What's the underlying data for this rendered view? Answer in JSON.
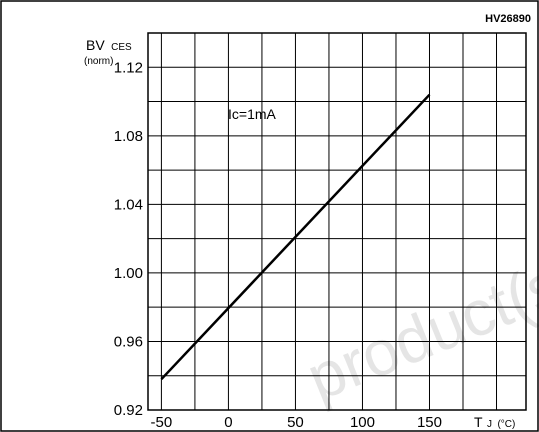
{
  "figure": {
    "code": "HV26890"
  },
  "chart_data": {
    "type": "line",
    "ylabel_main": "BV",
    "ylabel_sub": "CES",
    "ylabel_unit": "(norm)",
    "xlabel_main": "T",
    "xlabel_sub": "J",
    "xlabel_unit": "(°C)",
    "annotation": "Ic=1mA",
    "xlim": [
      -60,
      222
    ],
    "ylim": [
      0.92,
      1.14
    ],
    "x_ticks": [
      -50,
      0,
      50,
      100,
      150
    ],
    "x_tick_labels": [
      "-50",
      "0",
      "50",
      "100",
      "150"
    ],
    "y_ticks": [
      0.92,
      0.96,
      1.0,
      1.04,
      1.08,
      1.12
    ],
    "y_tick_labels": [
      "0.92",
      "0.96",
      "1.00",
      "1.04",
      "1.08",
      "1.12"
    ],
    "grid": true,
    "series": [
      {
        "x": [
          -50,
          150
        ],
        "y": [
          0.938,
          1.104
        ]
      }
    ]
  },
  "watermark": {
    "text": "product(s)"
  }
}
